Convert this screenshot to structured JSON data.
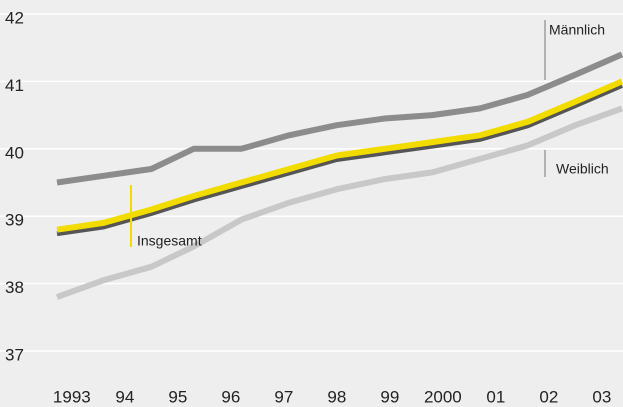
{
  "chart_data": {
    "type": "line",
    "x": [
      1992.72,
      1993.6,
      1994.5,
      1995.3,
      1996.2,
      1997.1,
      1998.0,
      1998.9,
      1999.8,
      2000.7,
      2001.6,
      2002.5,
      2003.38
    ],
    "series": [
      {
        "name": "Männlich",
        "color": "#8c8c8c",
        "values": [
          39.5,
          39.6,
          39.7,
          40.0,
          40.0,
          40.2,
          40.35,
          40.45,
          40.5,
          40.6,
          40.8,
          41.1,
          41.4
        ]
      },
      {
        "name": "Insgesamt",
        "color": "#f2dc00",
        "values": [
          38.8,
          38.9,
          39.1,
          39.3,
          39.5,
          39.7,
          39.9,
          40.0,
          40.1,
          40.2,
          40.4,
          40.7,
          41.0
        ]
      },
      {
        "name": "Weiblich",
        "color": "#c8c8c8",
        "values": [
          37.8,
          38.05,
          38.25,
          38.55,
          38.95,
          39.2,
          39.4,
          39.55,
          39.65,
          39.85,
          40.05,
          40.35,
          40.6
        ]
      }
    ],
    "xlim": [
      1992.72,
      2003.38
    ],
    "xticks": [
      1993,
      {
        "value": 1994,
        "label": "94"
      },
      {
        "value": 1995,
        "label": "95"
      },
      {
        "value": 1996,
        "label": "96"
      },
      {
        "value": 1997,
        "label": "97"
      },
      {
        "value": 1998,
        "label": "98"
      },
      {
        "value": 1999,
        "label": "99"
      },
      2000,
      {
        "value": 2001,
        "label": "01"
      },
      {
        "value": 2002,
        "label": "02"
      },
      {
        "value": 2003,
        "label": "03"
      }
    ],
    "ylim": [
      37,
      42
    ],
    "yticks": [
      37,
      38,
      39,
      40,
      41,
      42
    ],
    "grid": true
  }
}
